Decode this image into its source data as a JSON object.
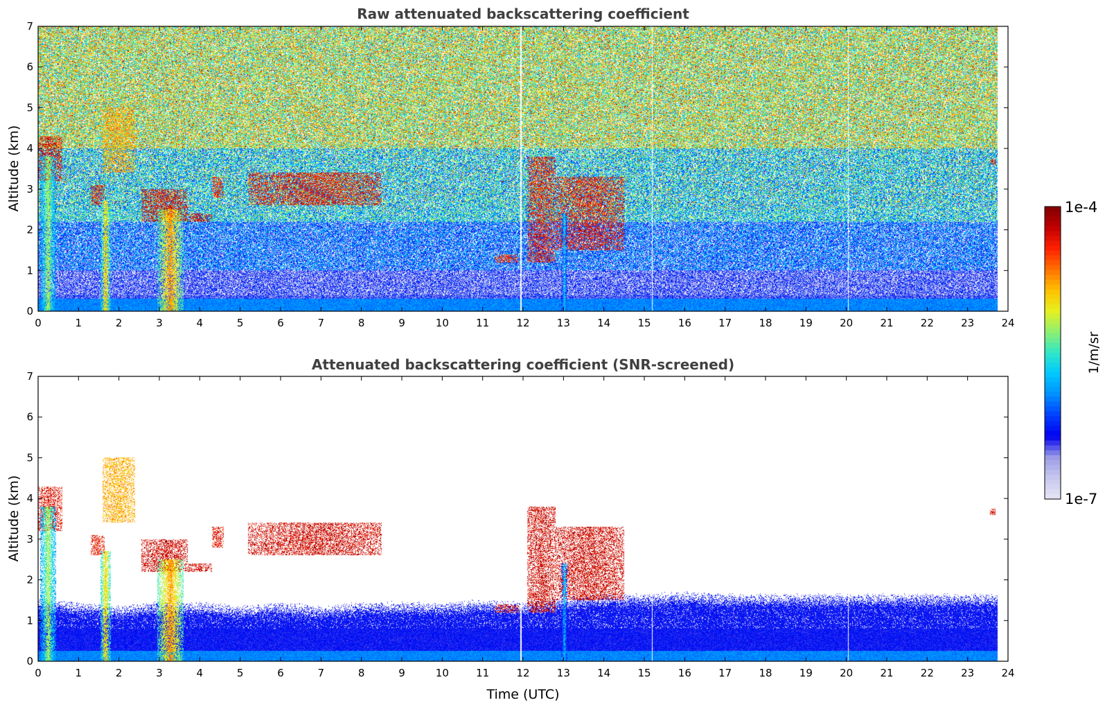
{
  "chart_data": [
    {
      "type": "heatmap",
      "title": "Raw attenuated backscattering coefficient",
      "xlabel": "",
      "ylabel": "Altitude (km)",
      "xlim": [
        0,
        24
      ],
      "ylim": [
        0,
        7
      ],
      "x_ticks": [
        "0",
        "1",
        "2",
        "3",
        "4",
        "5",
        "6",
        "7",
        "8",
        "9",
        "10",
        "11",
        "12",
        "13",
        "14",
        "15",
        "16",
        "17",
        "18",
        "19",
        "20",
        "21",
        "22",
        "23",
        "24"
      ],
      "y_ticks": [
        "0",
        "1",
        "2",
        "3",
        "4",
        "5",
        "6",
        "7"
      ],
      "data_extent_x": [
        0,
        23.75
      ],
      "grid": false,
      "noise_regions": [
        {
          "y_from": 0,
          "y_to": 0.3,
          "level": 0.35,
          "spread": 0.05
        },
        {
          "y_from": 0.3,
          "y_to": 1.0,
          "level": 0.2,
          "spread": 0.12
        },
        {
          "y_from": 1.0,
          "y_to": 2.2,
          "level": 0.3,
          "spread": 0.18
        },
        {
          "y_from": 2.2,
          "y_to": 4.0,
          "level": 0.45,
          "spread": 0.2
        },
        {
          "y_from": 4.0,
          "y_to": 7.0,
          "level": 0.6,
          "spread": 0.22
        }
      ],
      "features": [
        {
          "kind": "cloud",
          "x": [
            0.0,
            0.6
          ],
          "y": [
            3.2,
            4.3
          ],
          "level": 0.97
        },
        {
          "kind": "precip",
          "x": [
            0.05,
            0.45
          ],
          "y": [
            0,
            3.8
          ],
          "level": 0.6
        },
        {
          "kind": "cloud",
          "x": [
            1.3,
            1.65
          ],
          "y": [
            2.6,
            3.1
          ],
          "level": 0.95
        },
        {
          "kind": "precip",
          "x": [
            1.55,
            1.8
          ],
          "y": [
            0,
            2.7
          ],
          "level": 0.7
        },
        {
          "kind": "cloud",
          "x": [
            1.6,
            2.4
          ],
          "y": [
            3.4,
            5.0
          ],
          "level": 0.8
        },
        {
          "kind": "cloud",
          "x": [
            2.55,
            3.7
          ],
          "y": [
            2.2,
            3.0
          ],
          "level": 0.97
        },
        {
          "kind": "precip",
          "x": [
            2.95,
            3.6
          ],
          "y": [
            0,
            2.5
          ],
          "level": 0.75
        },
        {
          "kind": "cloud",
          "x": [
            3.7,
            4.3
          ],
          "y": [
            2.2,
            2.4
          ],
          "level": 0.98
        },
        {
          "kind": "cloud",
          "x": [
            4.3,
            4.6
          ],
          "y": [
            2.8,
            3.3
          ],
          "level": 0.93
        },
        {
          "kind": "cloud",
          "x": [
            5.2,
            8.5
          ],
          "y": [
            2.6,
            3.4
          ],
          "level": 0.95
        },
        {
          "kind": "cloud",
          "x": [
            11.3,
            11.9
          ],
          "y": [
            1.2,
            1.4
          ],
          "level": 0.93
        },
        {
          "kind": "cloud",
          "x": [
            12.1,
            12.8
          ],
          "y": [
            1.2,
            3.8
          ],
          "level": 0.95
        },
        {
          "kind": "cloud",
          "x": [
            12.8,
            14.5
          ],
          "y": [
            1.5,
            3.3
          ],
          "level": 0.95
        },
        {
          "kind": "precip",
          "x": [
            12.95,
            13.1
          ],
          "y": [
            0,
            2.4
          ],
          "level": 0.45
        },
        {
          "kind": "cloud",
          "x": [
            23.55,
            23.7
          ],
          "y": [
            3.6,
            3.75
          ],
          "level": 0.99
        }
      ],
      "gaps_x": [
        11.95,
        15.2,
        20.05
      ]
    },
    {
      "type": "heatmap",
      "title": "Attenuated backscattering coefficient (SNR-screened)",
      "xlabel": "Time (UTC)",
      "ylabel": "Altitude (km)",
      "xlim": [
        0,
        24
      ],
      "ylim": [
        0,
        7
      ],
      "x_ticks": [
        "0",
        "1",
        "2",
        "3",
        "4",
        "5",
        "6",
        "7",
        "8",
        "9",
        "10",
        "11",
        "12",
        "13",
        "14",
        "15",
        "16",
        "17",
        "18",
        "19",
        "20",
        "21",
        "22",
        "23",
        "24"
      ],
      "y_ticks": [
        "0",
        "1",
        "2",
        "3",
        "4",
        "5",
        "6",
        "7"
      ],
      "data_extent_x": [
        0,
        23.75
      ],
      "grid": false,
      "boundary_layer_top_km": [
        [
          0,
          1.4
        ],
        [
          1,
          1.3
        ],
        [
          2,
          1.2
        ],
        [
          3,
          1.3
        ],
        [
          4,
          1.3
        ],
        [
          5,
          1.2
        ],
        [
          6,
          1.3
        ],
        [
          7,
          1.2
        ],
        [
          8,
          1.3
        ],
        [
          9,
          1.3
        ],
        [
          10,
          1.3
        ],
        [
          11,
          1.35
        ],
        [
          12,
          1.3
        ],
        [
          13,
          1.4
        ],
        [
          14,
          1.5
        ],
        [
          15,
          1.5
        ],
        [
          16,
          1.55
        ],
        [
          17,
          1.5
        ],
        [
          18,
          1.5
        ],
        [
          19,
          1.5
        ],
        [
          20,
          1.5
        ],
        [
          21,
          1.5
        ],
        [
          22,
          1.5
        ],
        [
          23,
          1.5
        ],
        [
          23.75,
          1.5
        ]
      ],
      "features": [
        {
          "kind": "cloud",
          "x": [
            0.0,
            0.6
          ],
          "y": [
            3.2,
            4.3
          ],
          "level": 0.97
        },
        {
          "kind": "precip",
          "x": [
            0.05,
            0.45
          ],
          "y": [
            0,
            3.8
          ],
          "level": 0.6
        },
        {
          "kind": "cloud",
          "x": [
            1.3,
            1.65
          ],
          "y": [
            2.6,
            3.1
          ],
          "level": 0.95
        },
        {
          "kind": "precip",
          "x": [
            1.55,
            1.8
          ],
          "y": [
            0,
            2.7
          ],
          "level": 0.7
        },
        {
          "kind": "cloud",
          "x": [
            1.6,
            2.4
          ],
          "y": [
            3.4,
            5.0
          ],
          "level": 0.8
        },
        {
          "kind": "cloud",
          "x": [
            2.55,
            3.7
          ],
          "y": [
            2.2,
            3.0
          ],
          "level": 0.99
        },
        {
          "kind": "precip",
          "x": [
            2.95,
            3.6
          ],
          "y": [
            0,
            2.5
          ],
          "level": 0.75
        },
        {
          "kind": "cloud",
          "x": [
            3.7,
            4.3
          ],
          "y": [
            2.2,
            2.4
          ],
          "level": 0.99
        },
        {
          "kind": "cloud",
          "x": [
            4.3,
            4.6
          ],
          "y": [
            2.8,
            3.3
          ],
          "level": 0.96
        },
        {
          "kind": "cloud",
          "x": [
            5.2,
            8.5
          ],
          "y": [
            2.6,
            3.4
          ],
          "level": 0.99
        },
        {
          "kind": "cloud",
          "x": [
            11.3,
            11.9
          ],
          "y": [
            1.2,
            1.4
          ],
          "level": 0.97
        },
        {
          "kind": "cloud",
          "x": [
            12.1,
            12.8
          ],
          "y": [
            1.2,
            3.8
          ],
          "level": 0.99
        },
        {
          "kind": "cloud",
          "x": [
            12.8,
            14.5
          ],
          "y": [
            1.5,
            3.3
          ],
          "level": 0.99
        },
        {
          "kind": "precip",
          "x": [
            12.95,
            13.1
          ],
          "y": [
            0,
            2.4
          ],
          "level": 0.45
        },
        {
          "kind": "cloud",
          "x": [
            23.55,
            23.7
          ],
          "y": [
            3.6,
            3.75
          ],
          "level": 0.99
        }
      ],
      "gaps_x": [
        11.95,
        15.2,
        20.05
      ]
    }
  ],
  "colorbar": {
    "label": "1/m/sr",
    "max_label": "1e-4",
    "min_label": "1e-7",
    "colors": [
      "#e6e6f5",
      "#c8c8ef",
      "#9c9ce6",
      "#0000f0",
      "#0040ff",
      "#0090ff",
      "#00c8ff",
      "#30e8c8",
      "#90f070",
      "#e8f020",
      "#ffc000",
      "#ff7000",
      "#ff2000",
      "#c00000",
      "#800000"
    ]
  }
}
